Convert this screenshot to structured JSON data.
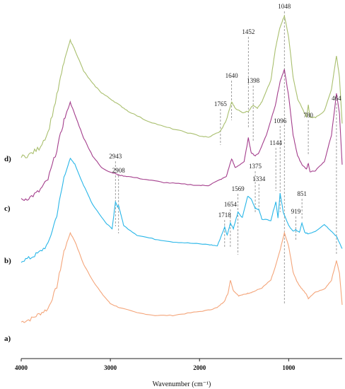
{
  "chart_data": {
    "type": "line",
    "xlabel": "Wavenumber (cm⁻¹)",
    "xlim": [
      4000,
      400
    ],
    "x_ticks": [
      4000,
      3000,
      2000,
      1000
    ],
    "reversed_x": true,
    "grid": false,
    "series": [
      {
        "name": "a)",
        "color": "#f4a57a",
        "points": [
          [
            4000,
            0.08
          ],
          [
            3900,
            0.1
          ],
          [
            3800,
            0.14
          ],
          [
            3700,
            0.18
          ],
          [
            3600,
            0.35
          ],
          [
            3520,
            0.62
          ],
          [
            3450,
            0.76
          ],
          [
            3400,
            0.7
          ],
          [
            3300,
            0.52
          ],
          [
            3200,
            0.4
          ],
          [
            3100,
            0.3
          ],
          [
            3000,
            0.22
          ],
          [
            2900,
            0.19
          ],
          [
            2700,
            0.15
          ],
          [
            2500,
            0.13
          ],
          [
            2300,
            0.13
          ],
          [
            2100,
            0.15
          ],
          [
            1900,
            0.17
          ],
          [
            1800,
            0.19
          ],
          [
            1720,
            0.24
          ],
          [
            1680,
            0.3
          ],
          [
            1654,
            0.4
          ],
          [
            1620,
            0.32
          ],
          [
            1560,
            0.28
          ],
          [
            1500,
            0.29
          ],
          [
            1452,
            0.3
          ],
          [
            1400,
            0.31
          ],
          [
            1300,
            0.34
          ],
          [
            1200,
            0.4
          ],
          [
            1150,
            0.5
          ],
          [
            1100,
            0.62
          ],
          [
            1048,
            0.76
          ],
          [
            1000,
            0.66
          ],
          [
            950,
            0.46
          ],
          [
            900,
            0.38
          ],
          [
            860,
            0.34
          ],
          [
            800,
            0.29
          ],
          [
            780,
            0.26
          ],
          [
            700,
            0.31
          ],
          [
            600,
            0.33
          ],
          [
            520,
            0.4
          ],
          [
            464,
            0.55
          ],
          [
            430,
            0.45
          ],
          [
            400,
            0.21
          ]
        ]
      },
      {
        "name": "b)",
        "color": "#29b6e8",
        "points": [
          [
            4000,
            0.06
          ],
          [
            3900,
            0.08
          ],
          [
            3800,
            0.12
          ],
          [
            3700,
            0.18
          ],
          [
            3600,
            0.4
          ],
          [
            3520,
            0.68
          ],
          [
            3450,
            0.82
          ],
          [
            3400,
            0.78
          ],
          [
            3300,
            0.62
          ],
          [
            3200,
            0.48
          ],
          [
            3050,
            0.34
          ],
          [
            2980,
            0.3
          ],
          [
            2943,
            0.5
          ],
          [
            2920,
            0.46
          ],
          [
            2908,
            0.47
          ],
          [
            2880,
            0.4
          ],
          [
            2850,
            0.32
          ],
          [
            2700,
            0.25
          ],
          [
            2500,
            0.22
          ],
          [
            2300,
            0.2
          ],
          [
            2100,
            0.19
          ],
          [
            1900,
            0.18
          ],
          [
            1800,
            0.17
          ],
          [
            1718,
            0.31
          ],
          [
            1690,
            0.25
          ],
          [
            1654,
            0.34
          ],
          [
            1620,
            0.3
          ],
          [
            1569,
            0.42
          ],
          [
            1520,
            0.38
          ],
          [
            1460,
            0.54
          ],
          [
            1420,
            0.52
          ],
          [
            1375,
            0.45
          ],
          [
            1334,
            0.44
          ],
          [
            1300,
            0.37
          ],
          [
            1200,
            0.36
          ],
          [
            1144,
            0.5
          ],
          [
            1120,
            0.38
          ],
          [
            1096,
            0.56
          ],
          [
            1060,
            0.42
          ],
          [
            1000,
            0.32
          ],
          [
            950,
            0.28
          ],
          [
            919,
            0.29
          ],
          [
            880,
            0.27
          ],
          [
            851,
            0.34
          ],
          [
            820,
            0.27
          ],
          [
            780,
            0.26
          ],
          [
            700,
            0.28
          ],
          [
            600,
            0.33
          ],
          [
            520,
            0.28
          ],
          [
            464,
            0.24
          ],
          [
            400,
            0.15
          ]
        ]
      },
      {
        "name": "c)",
        "color": "#a43e8c",
        "points": [
          [
            4000,
            0.08
          ],
          [
            3900,
            0.1
          ],
          [
            3800,
            0.14
          ],
          [
            3700,
            0.22
          ],
          [
            3600,
            0.42
          ],
          [
            3520,
            0.62
          ],
          [
            3450,
            0.74
          ],
          [
            3400,
            0.66
          ],
          [
            3300,
            0.5
          ],
          [
            3200,
            0.38
          ],
          [
            3100,
            0.3
          ],
          [
            3000,
            0.27
          ],
          [
            2943,
            0.26
          ],
          [
            2908,
            0.25
          ],
          [
            2800,
            0.24
          ],
          [
            2600,
            0.22
          ],
          [
            2400,
            0.2
          ],
          [
            2200,
            0.19
          ],
          [
            2000,
            0.18
          ],
          [
            1900,
            0.18
          ],
          [
            1765,
            0.22
          ],
          [
            1700,
            0.24
          ],
          [
            1640,
            0.36
          ],
          [
            1600,
            0.3
          ],
          [
            1500,
            0.34
          ],
          [
            1452,
            0.5
          ],
          [
            1420,
            0.4
          ],
          [
            1375,
            0.38
          ],
          [
            1334,
            0.4
          ],
          [
            1250,
            0.52
          ],
          [
            1150,
            0.72
          ],
          [
            1096,
            0.88
          ],
          [
            1048,
            0.96
          ],
          [
            1000,
            0.78
          ],
          [
            950,
            0.52
          ],
          [
            900,
            0.38
          ],
          [
            850,
            0.32
          ],
          [
            800,
            0.29
          ],
          [
            780,
            0.33
          ],
          [
            760,
            0.27
          ],
          [
            700,
            0.28
          ],
          [
            600,
            0.34
          ],
          [
            520,
            0.52
          ],
          [
            464,
            0.8
          ],
          [
            430,
            0.66
          ],
          [
            400,
            0.32
          ]
        ]
      },
      {
        "name": "d)",
        "color": "#a9bf6e",
        "points": [
          [
            4000,
            0.08
          ],
          [
            3900,
            0.1
          ],
          [
            3800,
            0.14
          ],
          [
            3700,
            0.24
          ],
          [
            3600,
            0.48
          ],
          [
            3520,
            0.7
          ],
          [
            3450,
            0.84
          ],
          [
            3400,
            0.78
          ],
          [
            3300,
            0.64
          ],
          [
            3200,
            0.56
          ],
          [
            3100,
            0.5
          ],
          [
            3000,
            0.46
          ],
          [
            2900,
            0.42
          ],
          [
            2800,
            0.38
          ],
          [
            2600,
            0.32
          ],
          [
            2400,
            0.28
          ],
          [
            2200,
            0.25
          ],
          [
            2000,
            0.22
          ],
          [
            1900,
            0.21
          ],
          [
            1765,
            0.25
          ],
          [
            1700,
            0.32
          ],
          [
            1640,
            0.44
          ],
          [
            1600,
            0.4
          ],
          [
            1520,
            0.37
          ],
          [
            1452,
            0.38
          ],
          [
            1398,
            0.42
          ],
          [
            1350,
            0.4
          ],
          [
            1300,
            0.44
          ],
          [
            1200,
            0.58
          ],
          [
            1150,
            0.78
          ],
          [
            1100,
            0.92
          ],
          [
            1048,
            1.0
          ],
          [
            1000,
            0.86
          ],
          [
            950,
            0.6
          ],
          [
            900,
            0.46
          ],
          [
            850,
            0.4
          ],
          [
            800,
            0.34
          ],
          [
            780,
            0.42
          ],
          [
            760,
            0.34
          ],
          [
            700,
            0.34
          ],
          [
            600,
            0.38
          ],
          [
            520,
            0.52
          ],
          [
            464,
            0.74
          ],
          [
            430,
            0.6
          ],
          [
            400,
            0.3
          ]
        ]
      }
    ],
    "annotations": [
      {
        "text": "1048",
        "x": 1048
      },
      {
        "text": "1452",
        "x": 1452
      },
      {
        "text": "1640",
        "x": 1640
      },
      {
        "text": "1398",
        "x": 1398
      },
      {
        "text": "464",
        "x": 464
      },
      {
        "text": "1765",
        "x": 1765
      },
      {
        "text": "780",
        "x": 780
      },
      {
        "text": "1096",
        "x": 1096
      },
      {
        "text": "1144",
        "x": 1144
      },
      {
        "text": "2943",
        "x": 2943
      },
      {
        "text": "2908",
        "x": 2908
      },
      {
        "text": "1375",
        "x": 1375
      },
      {
        "text": "1334",
        "x": 1334
      },
      {
        "text": "1569",
        "x": 1569
      },
      {
        "text": "851",
        "x": 851
      },
      {
        "text": "1654",
        "x": 1654
      },
      {
        "text": "919",
        "x": 919
      },
      {
        "text": "1718",
        "x": 1718
      }
    ]
  }
}
